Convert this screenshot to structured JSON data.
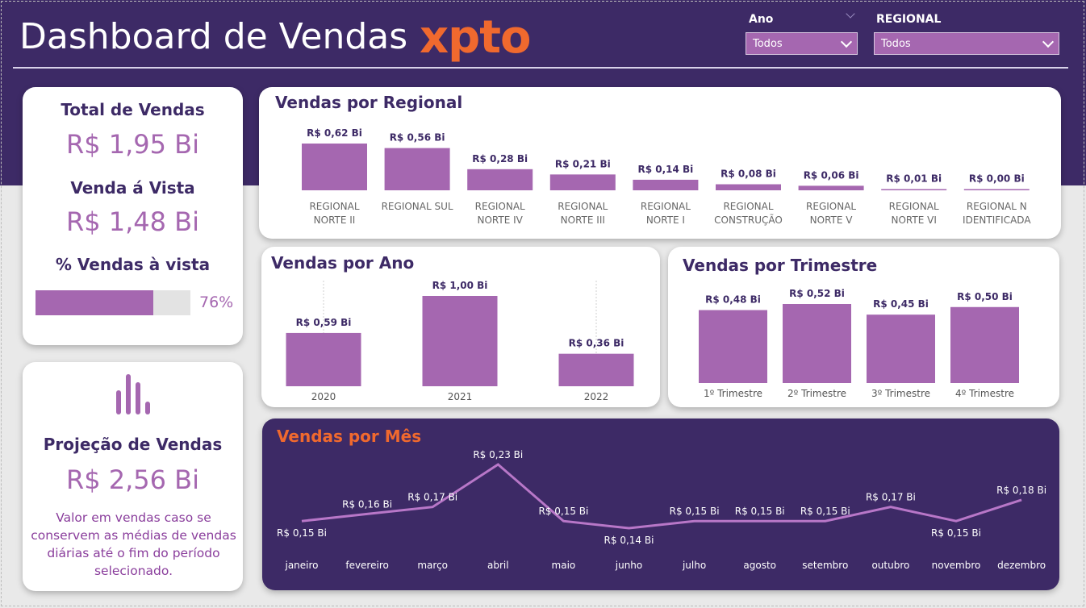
{
  "header": {
    "title": "Dashboard de Vendas",
    "brand": "xpto"
  },
  "filters": {
    "ano": {
      "label": "Ano",
      "value": "Todos"
    },
    "regional": {
      "label": "REGIONAL",
      "value": "Todos"
    }
  },
  "kpis": {
    "total_vendas_label": "Total de Vendas",
    "total_vendas_value": "R$ 1,95 Bi",
    "venda_vista_label": "Venda á Vista",
    "venda_vista_value": "R$ 1,48 Bi",
    "pct_vista_label": "% Vendas à vista",
    "pct_vista_value": "76%",
    "pct_vista_fraction": 0.76
  },
  "projecao": {
    "title": "Projeção de Vendas",
    "value": "R$ 2,56 Bi",
    "description": "Valor em vendas caso se conservem as médias de vendas diárias até o fim do período selecionado.",
    "icon": "bar-chart-icon"
  },
  "colors": {
    "bar": "#a567b0",
    "dark": "#3d2a66",
    "accent": "#f0692e",
    "line": "#b877c8"
  },
  "chart_data": [
    {
      "id": "regional",
      "type": "bar",
      "title": "Vendas por Regional",
      "categories": [
        "REGIONAL NORTE II",
        "REGIONAL SUL",
        "REGIONAL NORTE IV",
        "REGIONAL NORTE III",
        "REGIONAL NORTE I",
        "REGIONAL CONSTRUÇÃO",
        "REGIONAL NORTE V",
        "REGIONAL NORTE VI",
        "REGIONAL N IDENTIFICADA"
      ],
      "category_lines": [
        [
          "REGIONAL",
          "NORTE II"
        ],
        [
          "REGIONAL SUL"
        ],
        [
          "REGIONAL",
          "NORTE IV"
        ],
        [
          "REGIONAL",
          "NORTE III"
        ],
        [
          "REGIONAL",
          "NORTE I"
        ],
        [
          "REGIONAL",
          "CONSTRUÇÃO"
        ],
        [
          "REGIONAL",
          "NORTE V"
        ],
        [
          "REGIONAL",
          "NORTE VI"
        ],
        [
          "REGIONAL N",
          "IDENTIFICADA"
        ]
      ],
      "values": [
        0.62,
        0.56,
        0.28,
        0.21,
        0.14,
        0.08,
        0.06,
        0.01,
        0.0
      ],
      "labels": [
        "R$ 0,62 Bi",
        "R$ 0,56 Bi",
        "R$ 0,28 Bi",
        "R$ 0,21 Bi",
        "R$ 0,14 Bi",
        "R$ 0,08 Bi",
        "R$ 0,06 Bi",
        "R$ 0,01 Bi",
        "R$ 0,00 Bi"
      ],
      "unit": "R$ Bi"
    },
    {
      "id": "ano",
      "type": "bar",
      "title": "Vendas por Ano",
      "categories": [
        "2020",
        "2021",
        "2022"
      ],
      "values": [
        0.59,
        1.0,
        0.36
      ],
      "labels": [
        "R$ 0,59 Bi",
        "R$ 1,00 Bi",
        "R$ 0,36 Bi"
      ],
      "unit": "R$ Bi"
    },
    {
      "id": "trimestre",
      "type": "bar",
      "title": "Vendas por Trimestre",
      "categories": [
        "1º Trimestre",
        "2º Trimestre",
        "3º Trimestre",
        "4º Trimestre"
      ],
      "values": [
        0.48,
        0.52,
        0.45,
        0.5
      ],
      "labels": [
        "R$ 0,48 Bi",
        "R$ 0,52 Bi",
        "R$ 0,45 Bi",
        "R$ 0,50 Bi"
      ],
      "unit": "R$ Bi"
    },
    {
      "id": "mes",
      "type": "line",
      "title": "Vendas por Mês",
      "categories": [
        "janeiro",
        "fevereiro",
        "março",
        "abril",
        "maio",
        "junho",
        "julho",
        "agosto",
        "setembro",
        "outubro",
        "novembro",
        "dezembro"
      ],
      "values": [
        0.15,
        0.16,
        0.17,
        0.23,
        0.15,
        0.14,
        0.15,
        0.15,
        0.15,
        0.17,
        0.15,
        0.18
      ],
      "labels": [
        "R$ 0,15 Bi",
        "R$ 0,16 Bi",
        "R$ 0,17 Bi",
        "R$ 0,23 Bi",
        "R$ 0,15 Bi",
        "R$ 0,14 Bi",
        "R$ 0,15 Bi",
        "R$ 0,15 Bi",
        "R$ 0,15 Bi",
        "R$ 0,17 Bi",
        "R$ 0,15 Bi",
        "R$ 0,18 Bi"
      ],
      "label_positions": [
        "below",
        "above",
        "above",
        "above",
        "above",
        "below",
        "above",
        "above",
        "above",
        "above",
        "below",
        "above"
      ],
      "unit": "R$ Bi"
    }
  ]
}
